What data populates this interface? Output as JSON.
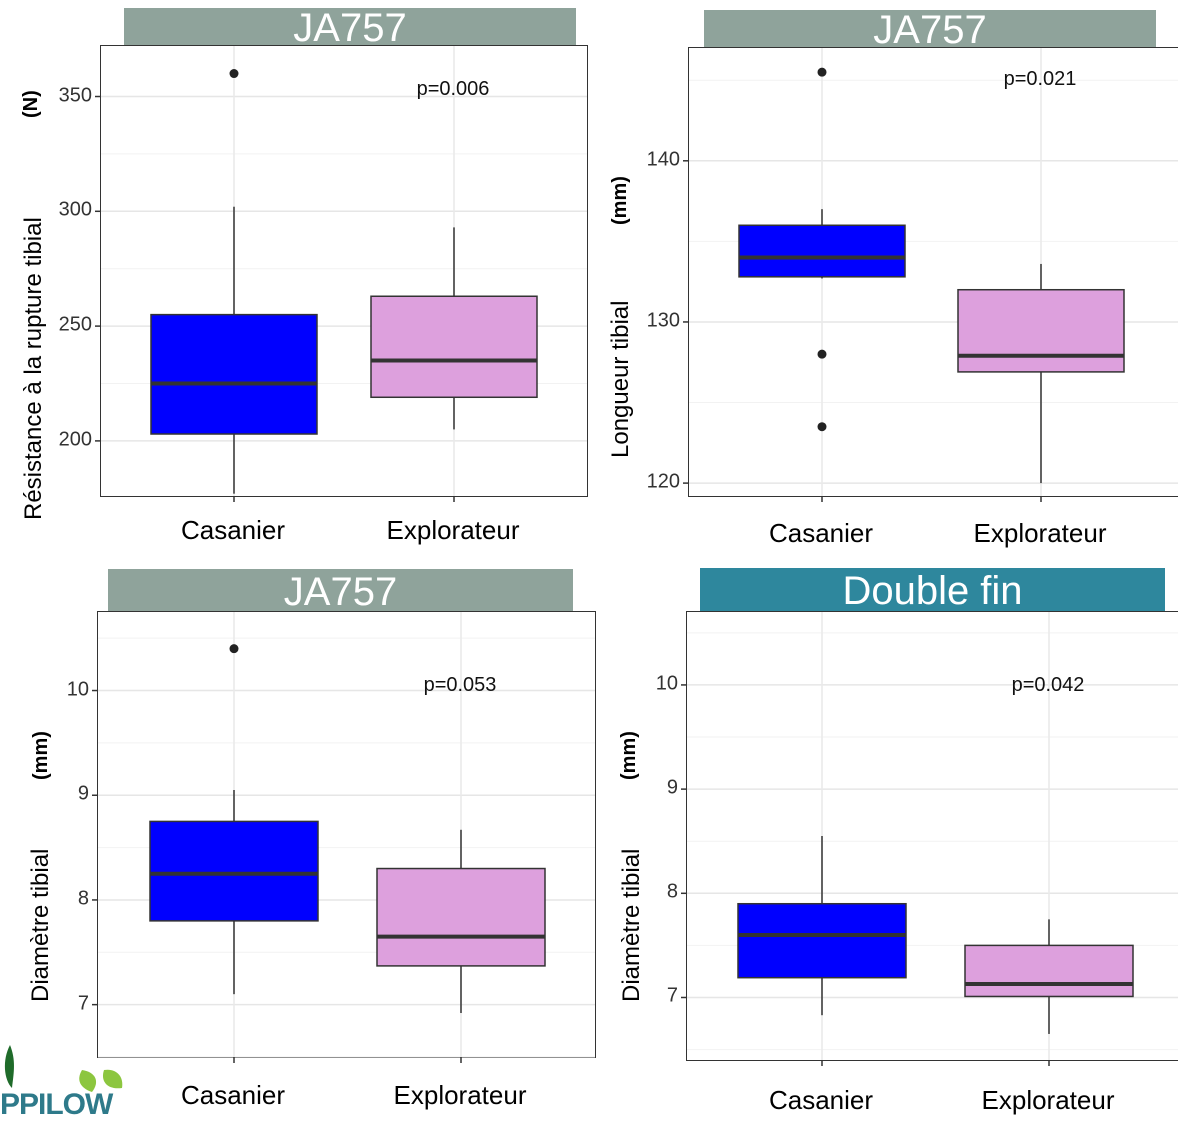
{
  "logo": {
    "text": "PPILOW"
  },
  "chart_data": [
    {
      "type": "box",
      "title": "JA757",
      "ylabel": "Résistance à la rupture tibial",
      "yunit": "(N)",
      "ylim": [
        176,
        372
      ],
      "yticks": [
        200,
        250,
        300,
        350
      ],
      "ytick_labels": [
        "200",
        "250",
        "300",
        "350"
      ],
      "categories": [
        "Casanier",
        "Explorateur"
      ],
      "annotation": "p=0.006",
      "banner_color": "#8fa39b",
      "boxes": [
        {
          "category": "Casanier",
          "min": 177,
          "q1": 203,
          "median": 225,
          "q3": 255,
          "max": 302,
          "outliers": [
            360
          ],
          "color": "#0000ff"
        },
        {
          "category": "Explorateur",
          "min": 205,
          "q1": 219,
          "median": 235,
          "q3": 263,
          "max": 293,
          "outliers": [],
          "color": "#dda0dd"
        }
      ]
    },
    {
      "type": "box",
      "title": "JA757",
      "ylabel": "Longueur tibial",
      "yunit": "(mm)",
      "ylim": [
        119.2,
        147
      ],
      "yticks": [
        120,
        130,
        140
      ],
      "ytick_labels": [
        "120",
        "130",
        "140"
      ],
      "categories": [
        "Casanier",
        "Explorateur"
      ],
      "annotation": "p=0.021",
      "banner_color": "#8fa39b",
      "boxes": [
        {
          "category": "Casanier",
          "min": 132.7,
          "q1": 132.8,
          "median": 134,
          "q3": 136,
          "max": 137,
          "outliers": [
            145.5,
            128,
            123.5
          ],
          "color": "#0000ff"
        },
        {
          "category": "Explorateur",
          "min": 120,
          "q1": 126.9,
          "median": 127.9,
          "q3": 132,
          "max": 133.6,
          "outliers": [],
          "color": "#dda0dd"
        }
      ]
    },
    {
      "type": "box",
      "title": "JA757",
      "ylabel": "Diamètre tibial",
      "yunit": "(mm)",
      "ylim": [
        6.5,
        10.75
      ],
      "yticks": [
        7,
        8,
        9,
        10
      ],
      "ytick_labels": [
        "7",
        "8",
        "9",
        "10"
      ],
      "categories": [
        "Casanier",
        "Explorateur"
      ],
      "annotation": "p=0.053",
      "banner_color": "#8fa39b",
      "boxes": [
        {
          "category": "Casanier",
          "min": 7.1,
          "q1": 7.8,
          "median": 8.25,
          "q3": 8.75,
          "max": 9.05,
          "outliers": [
            10.4
          ],
          "color": "#0000ff"
        },
        {
          "category": "Explorateur",
          "min": 6.92,
          "q1": 7.37,
          "median": 7.65,
          "q3": 8.3,
          "max": 8.67,
          "outliers": [],
          "color": "#dda0dd"
        }
      ]
    },
    {
      "type": "box",
      "title": "Double fin",
      "ylabel": "Diamètre tibial",
      "yunit": "(mm)",
      "ylim": [
        6.4,
        10.7
      ],
      "yticks": [
        7,
        8,
        9,
        10
      ],
      "ytick_labels": [
        "7",
        "8",
        "9",
        "10"
      ],
      "categories": [
        "Casanier",
        "Explorateur"
      ],
      "annotation": "p=0.042",
      "banner_color": "#2e879d",
      "boxes": [
        {
          "category": "Casanier",
          "min": 6.83,
          "q1": 7.19,
          "median": 7.6,
          "q3": 7.9,
          "max": 8.55,
          "outliers": [],
          "color": "#0000ff"
        },
        {
          "category": "Explorateur",
          "min": 6.65,
          "q1": 7.01,
          "median": 7.13,
          "q3": 7.5,
          "max": 7.75,
          "outliers": [],
          "color": "#dda0dd"
        }
      ]
    }
  ]
}
